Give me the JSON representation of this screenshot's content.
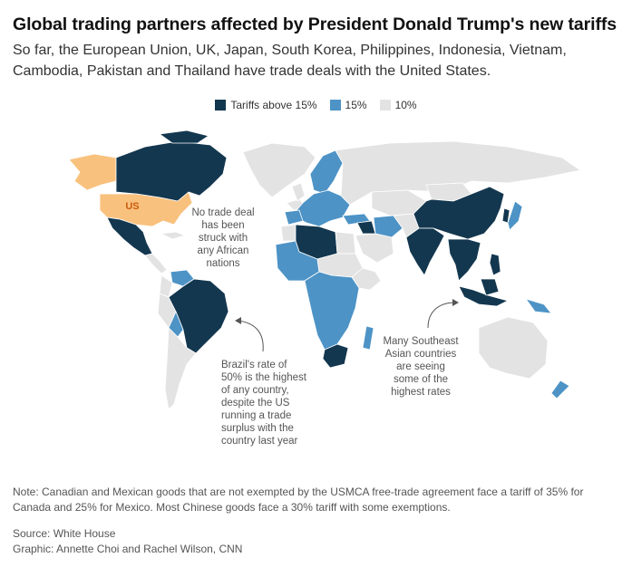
{
  "title": "Global trading partners affected by President Donald Trump's new tariffs",
  "subtitle": "So far, the European Union, UK, Japan, South Korea, Philippines, Indonesia, Vietnam, Cambodia, Pakistan and Thailand have trade deals with the United States.",
  "legend": [
    {
      "label": "Tariffs above 15%",
      "color": "#13374f"
    },
    {
      "label": "15%",
      "color": "#4d93c6"
    },
    {
      "label": "10%",
      "color": "#e3e3e3"
    }
  ],
  "colors": {
    "above15": "#13374f",
    "fifteen": "#4d93c6",
    "ten": "#e3e3e3",
    "us": "#f9c17e",
    "us_label": "#c85d0d",
    "annotation": "#555555",
    "border": "#ffffff"
  },
  "map": {
    "us_label": "US",
    "annotations": {
      "africa": [
        "No trade deal",
        "has been",
        "struck with",
        "any African",
        "nations"
      ],
      "brazil": [
        "Brazil's rate of",
        "50% is the highest",
        "of any country,",
        "despite the US",
        "running a trade",
        "surplus with the",
        "country last year"
      ],
      "asia": [
        "Many Southeast",
        "Asian countries",
        "are seeing",
        "some of the",
        "highest rates"
      ]
    }
  },
  "note": "Note: Canadian and Mexican goods that are not exempted by the USMCA free-trade agreement face a tariff of 35% for Canada and 25% for Mexico. Most Chinese goods face a 30% tariff with some exemptions.",
  "source": "Source: White House",
  "credit": "Graphic: Annette Choi and Rachel Wilson, CNN"
}
